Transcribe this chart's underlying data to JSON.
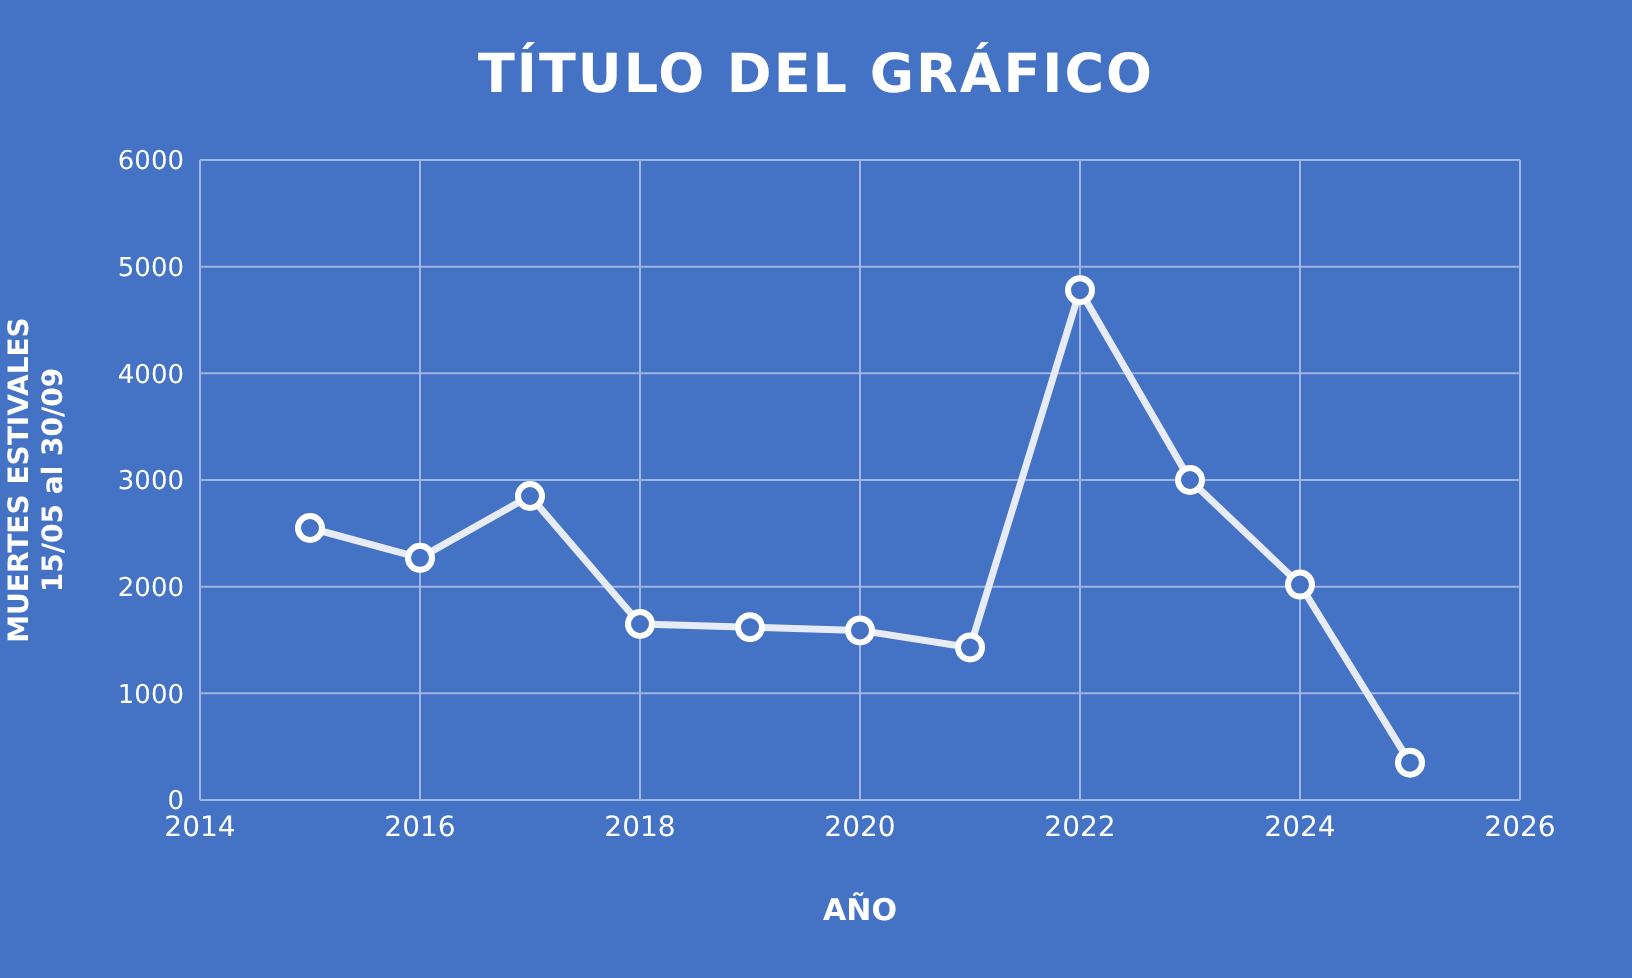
{
  "chart_data": {
    "type": "line",
    "title": "TÍTULO DEL GRÁFICO",
    "xlabel": "AÑO",
    "ylabel": "MUERTES ESTIVALES\n15/05 al 30/09",
    "x": [
      2015,
      2016,
      2017,
      2018,
      2019,
      2020,
      2021,
      2022,
      2023,
      2024,
      2025
    ],
    "series": [
      {
        "color": "#e6ebf5",
        "values": [
          2550,
          2270,
          2850,
          1650,
          1620,
          1590,
          1430,
          4780,
          3000,
          2020,
          350
        ]
      }
    ],
    "xlim": [
      2014,
      2026
    ],
    "xticks": [
      2014,
      2016,
      2018,
      2020,
      2022,
      2024,
      2026
    ],
    "ylim": [
      0,
      6000
    ],
    "yticks": [
      0,
      1000,
      2000,
      3000,
      4000,
      5000,
      6000
    ],
    "grid": true,
    "legend": false,
    "marker": "circle",
    "line_style": "solid"
  }
}
